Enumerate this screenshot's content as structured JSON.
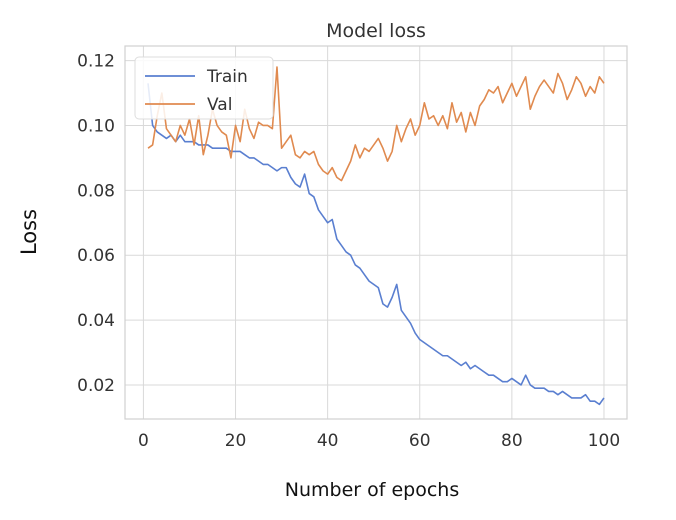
{
  "chart_data": {
    "type": "line",
    "title": "Model loss",
    "xlabel": "Number of epochs",
    "ylabel": "Loss",
    "xlim": [
      -4,
      105
    ],
    "ylim": [
      0.0095,
      0.1245
    ],
    "xticks": [
      0,
      20,
      40,
      60,
      80,
      100
    ],
    "yticks": [
      0.02,
      0.04,
      0.06,
      0.08,
      0.1,
      0.12
    ],
    "xtick_labels": [
      "0",
      "20",
      "40",
      "60",
      "80",
      "100"
    ],
    "ytick_labels": [
      "0.02",
      "0.04",
      "0.06",
      "0.08",
      "0.10",
      "0.12"
    ],
    "grid": true,
    "legend": "top-left",
    "x": [
      1,
      2,
      3,
      4,
      5,
      6,
      7,
      8,
      9,
      10,
      11,
      12,
      13,
      14,
      15,
      16,
      17,
      18,
      19,
      20,
      21,
      22,
      23,
      24,
      25,
      26,
      27,
      28,
      29,
      30,
      31,
      32,
      33,
      34,
      35,
      36,
      37,
      38,
      39,
      40,
      41,
      42,
      43,
      44,
      45,
      46,
      47,
      48,
      49,
      50,
      51,
      52,
      53,
      54,
      55,
      56,
      57,
      58,
      59,
      60,
      61,
      62,
      63,
      64,
      65,
      66,
      67,
      68,
      69,
      70,
      71,
      72,
      73,
      74,
      75,
      76,
      77,
      78,
      79,
      80,
      81,
      82,
      83,
      84,
      85,
      86,
      87,
      88,
      89,
      90,
      91,
      92,
      93,
      94,
      95,
      96,
      97,
      98,
      99,
      100
    ],
    "series": [
      {
        "name": "Train",
        "color": "#5a7fd0",
        "values": [
          0.113,
          0.1,
          0.098,
          0.097,
          0.096,
          0.097,
          0.095,
          0.097,
          0.095,
          0.095,
          0.095,
          0.094,
          0.094,
          0.094,
          0.093,
          0.093,
          0.093,
          0.093,
          0.092,
          0.092,
          0.092,
          0.091,
          0.09,
          0.09,
          0.089,
          0.088,
          0.088,
          0.087,
          0.086,
          0.087,
          0.087,
          0.084,
          0.082,
          0.081,
          0.085,
          0.079,
          0.078,
          0.074,
          0.072,
          0.07,
          0.071,
          0.065,
          0.063,
          0.061,
          0.06,
          0.057,
          0.056,
          0.054,
          0.052,
          0.051,
          0.05,
          0.045,
          0.044,
          0.047,
          0.051,
          0.043,
          0.041,
          0.039,
          0.036,
          0.034,
          0.033,
          0.032,
          0.031,
          0.03,
          0.029,
          0.029,
          0.028,
          0.027,
          0.026,
          0.027,
          0.025,
          0.026,
          0.025,
          0.024,
          0.023,
          0.023,
          0.022,
          0.021,
          0.021,
          0.022,
          0.021,
          0.02,
          0.023,
          0.02,
          0.019,
          0.019,
          0.019,
          0.018,
          0.018,
          0.017,
          0.018,
          0.017,
          0.016,
          0.016,
          0.016,
          0.017,
          0.015,
          0.015,
          0.014,
          0.016
        ]
      },
      {
        "name": "Val",
        "color": "#e08a4f",
        "values": [
          0.093,
          0.094,
          0.103,
          0.11,
          0.099,
          0.097,
          0.095,
          0.1,
          0.097,
          0.102,
          0.094,
          0.103,
          0.091,
          0.097,
          0.105,
          0.1,
          0.098,
          0.097,
          0.09,
          0.1,
          0.095,
          0.105,
          0.099,
          0.096,
          0.101,
          0.1,
          0.1,
          0.099,
          0.118,
          0.093,
          0.095,
          0.097,
          0.091,
          0.09,
          0.092,
          0.091,
          0.092,
          0.088,
          0.086,
          0.085,
          0.087,
          0.084,
          0.083,
          0.086,
          0.089,
          0.094,
          0.09,
          0.093,
          0.092,
          0.094,
          0.096,
          0.093,
          0.089,
          0.092,
          0.1,
          0.095,
          0.099,
          0.102,
          0.097,
          0.1,
          0.107,
          0.102,
          0.103,
          0.1,
          0.103,
          0.099,
          0.107,
          0.101,
          0.104,
          0.098,
          0.104,
          0.1,
          0.106,
          0.108,
          0.111,
          0.11,
          0.112,
          0.107,
          0.11,
          0.113,
          0.109,
          0.112,
          0.115,
          0.105,
          0.109,
          0.112,
          0.114,
          0.112,
          0.11,
          0.116,
          0.113,
          0.108,
          0.111,
          0.115,
          0.113,
          0.109,
          0.112,
          0.11,
          0.115,
          0.113
        ]
      }
    ]
  }
}
